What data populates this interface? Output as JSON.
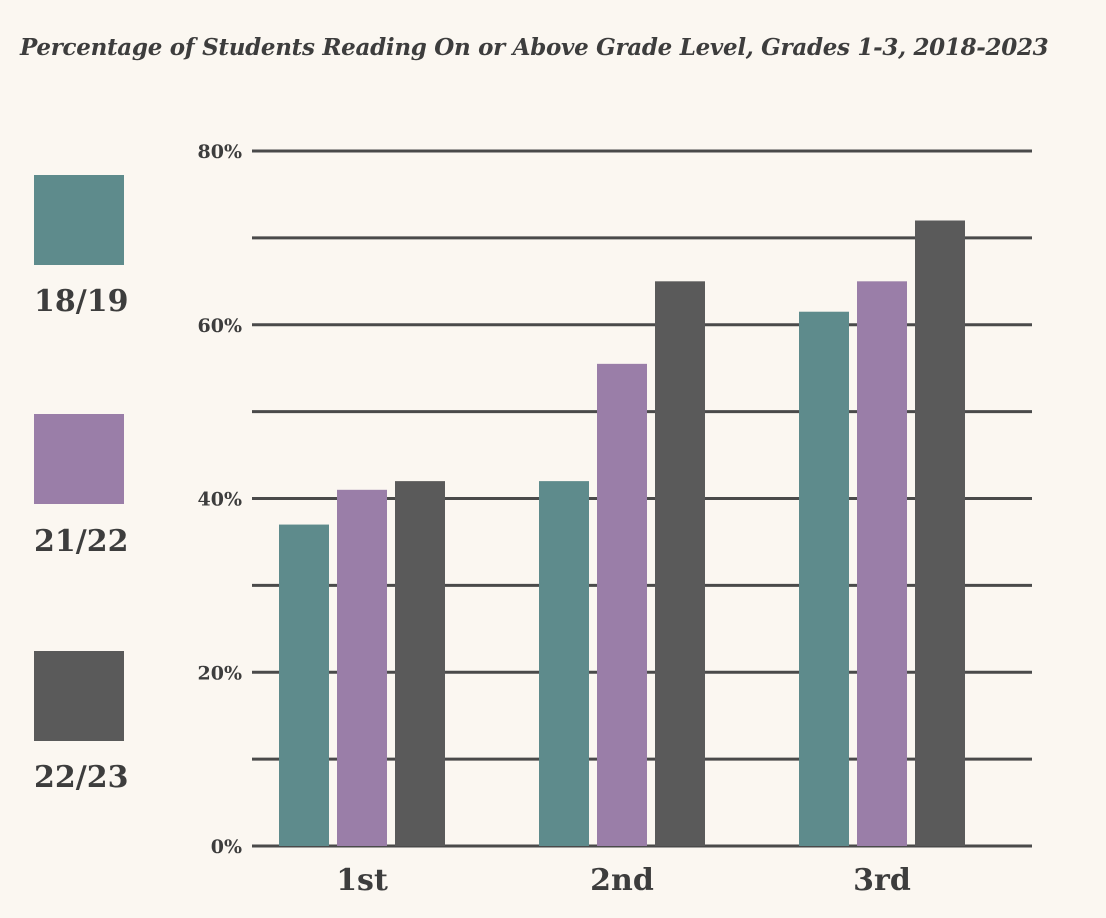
{
  "chart_data": {
    "type": "bar",
    "title": "Percentage of Students Reading On or Above Grade Level, Grades 1-3, 2018-2023",
    "xlabel": "",
    "ylabel": "",
    "categories": [
      "1st",
      "2nd",
      "3rd"
    ],
    "series": [
      {
        "name": "18/19",
        "color": "#5e8b8c",
        "values": [
          37,
          42,
          61.5
        ]
      },
      {
        "name": "21/22",
        "color": "#9a7ea8",
        "values": [
          41,
          55.5,
          65
        ]
      },
      {
        "name": "22/23",
        "color": "#5a5a5a",
        "values": [
          42,
          65,
          72
        ]
      }
    ],
    "ylim": [
      0,
      80
    ],
    "y_ticks": [
      {
        "value": 0,
        "label": "0%"
      },
      {
        "value": 20,
        "label": "20%"
      },
      {
        "value": 40,
        "label": "40%"
      },
      {
        "value": 60,
        "label": "60%"
      },
      {
        "value": 80,
        "label": "80%"
      }
    ],
    "gridlines_every": 10,
    "grid": true,
    "legend_position": "left"
  }
}
